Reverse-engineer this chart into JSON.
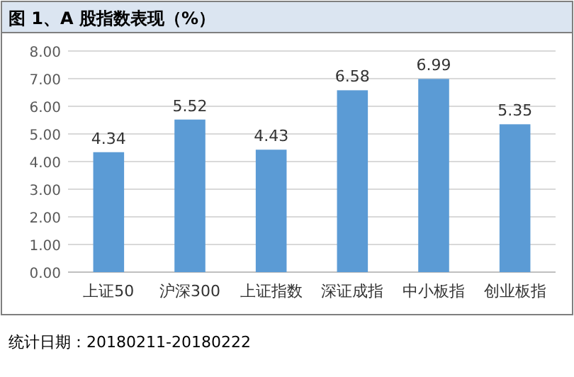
{
  "chart_data": {
    "type": "bar",
    "title": "图 1、A 股指数表现（%）",
    "categories": [
      "上证50",
      "沪深300",
      "上证指数",
      "深证成指",
      "中小板指",
      "创业板指"
    ],
    "values": [
      4.34,
      5.52,
      4.43,
      6.58,
      6.99,
      5.35
    ],
    "color": "#5b9bd5",
    "ylim": [
      0,
      8
    ],
    "yticks": [
      {
        "value": 0,
        "label": "0.00"
      },
      {
        "value": 1,
        "label": "1.00"
      },
      {
        "value": 2,
        "label": "2.00"
      },
      {
        "value": 3,
        "label": "3.00"
      },
      {
        "value": 4,
        "label": "4.00"
      },
      {
        "value": 5,
        "label": "5.00"
      },
      {
        "value": 6,
        "label": "6.00"
      },
      {
        "value": 7,
        "label": "7.00"
      },
      {
        "value": 8,
        "label": "8.00"
      }
    ],
    "grid": true,
    "data_labels": true,
    "annotations": [
      "统计日期：20180211-20180222"
    ]
  }
}
